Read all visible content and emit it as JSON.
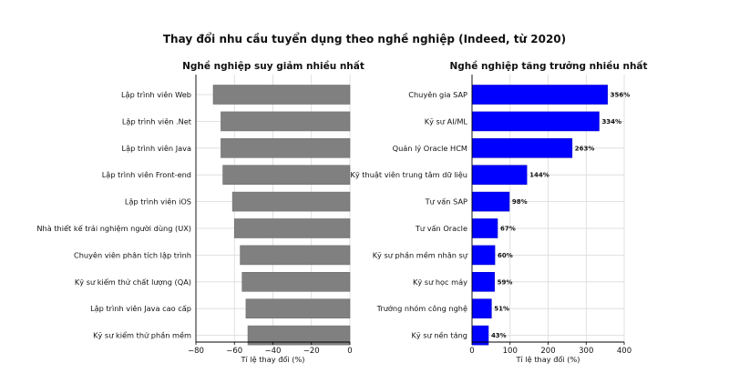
{
  "title": "Thay đổi nhu cầu tuyển dụng theo nghề nghiệp (Indeed, từ 2020)",
  "chart_data": [
    {
      "type": "bar",
      "orientation": "horizontal",
      "title": "Nghề nghiệp suy giảm nhiều nhất",
      "xlabel": "Tỉ lệ thay đổi (%)",
      "ylabel": "",
      "xlim": [
        -80,
        0
      ],
      "xticks": [
        -80,
        -60,
        -40,
        -20,
        0
      ],
      "xtick_labels": [
        "−80",
        "−60",
        "−40",
        "−20",
        "0"
      ],
      "grid": true,
      "color": "#808080",
      "categories": [
        "Lập trình viên Web",
        "Lập trình viên .Net",
        "Lập trình viên Java",
        "Lập trình viên Front-end",
        "Lập trình viên iOS",
        "Nhà thiết kế trải nghiệm người dùng (UX)",
        "Chuyên viên phân tích lập trình",
        "Kỹ sư kiểm thử chất lượng (QA)",
        "Lập trình viên Java cao cấp",
        "Kỹ sư kiểm thử phần mềm"
      ],
      "values": [
        -71,
        -67,
        -67,
        -66,
        -61,
        -60,
        -57,
        -56,
        -54,
        -53
      ]
    },
    {
      "type": "bar",
      "orientation": "horizontal",
      "title": "Nghề nghiệp tăng trưởng nhiều nhất",
      "xlabel": "Tỉ lệ thay đổi (%)",
      "ylabel": "",
      "xlim": [
        0,
        400
      ],
      "xticks": [
        0,
        100,
        200,
        300,
        400
      ],
      "xtick_labels": [
        "0",
        "100",
        "200",
        "300",
        "400"
      ],
      "grid": true,
      "color": "#0000ff",
      "categories": [
        "Chuyên gia SAP",
        "Kỹ sư AI/ML",
        "Quản lý Oracle HCM",
        "Kỹ thuật viên trung tâm dữ liệu",
        "Tư vấn SAP",
        "Tư vấn Oracle",
        "Kỹ sư phần mềm nhân sự",
        "Kỹ sư học máy",
        "Trưởng nhóm công nghệ",
        "Kỹ sư nền tảng"
      ],
      "values": [
        356,
        334,
        263,
        144,
        98,
        67,
        60,
        59,
        51,
        43
      ],
      "value_labels": [
        "356%",
        "334%",
        "263%",
        "144%",
        "98%",
        "67%",
        "60%",
        "59%",
        "51%",
        "43%"
      ]
    }
  ]
}
